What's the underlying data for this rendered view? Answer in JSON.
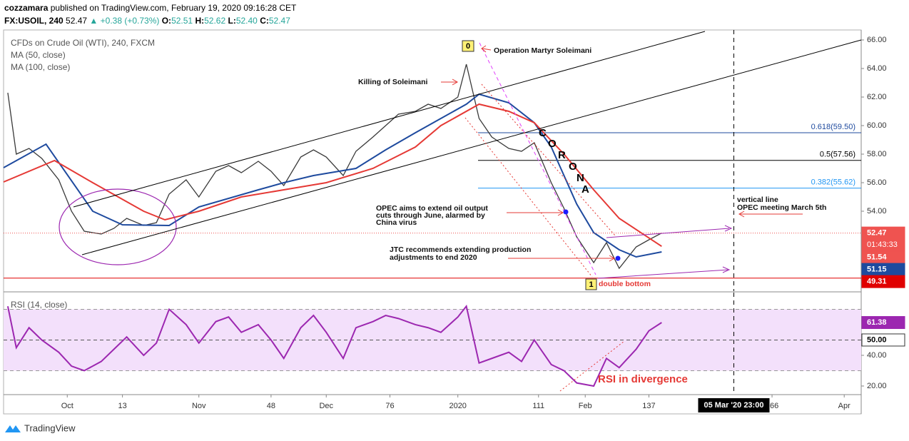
{
  "header": {
    "author": "cozzamara",
    "published": "published on TradingView.com, February 19, 2020 09:16:28 CET",
    "symbol": "FX:USOIL, 240",
    "last": "52.47",
    "arrow": "▲",
    "change": "+0.38 (+0.73%)",
    "o_label": "O:",
    "o": "52.51",
    "h_label": "H:",
    "h": "52.62",
    "l_label": "L:",
    "l": "52.40",
    "c_label": "C:",
    "c": "52.47"
  },
  "annotations": {
    "marker_0": "0",
    "marker_1": "1",
    "operation": "Operation Martyr Soleimani",
    "killing": "Killing of Soleimani",
    "opec": [
      "OPEC aims to extend oil output",
      "cuts through June, alarmed by",
      "China virus"
    ],
    "jtc": [
      "JTC recommends extending production",
      "adjustments to end 2020"
    ],
    "vertical": [
      "vertical line",
      "OPEC meeting March 5th"
    ],
    "double_bottom": "double bottom",
    "divergence": "RSI in divergence",
    "corona": [
      "C",
      "O",
      "R",
      "O",
      "N",
      "A"
    ]
  },
  "footer": "TradingView",
  "chart_data": [
    {
      "type": "line",
      "title": "CFDs on Crude Oil (WTI), 240, FXCM",
      "xlim": [
        -15,
        187
      ],
      "ylim": [
        48.4,
        66.7
      ],
      "yticks": [
        {
          "value": 54,
          "label": "54.00"
        },
        {
          "value": 56,
          "label": "56.00"
        },
        {
          "value": 58,
          "label": "58.00"
        },
        {
          "value": 60,
          "label": "60.00"
        },
        {
          "value": 62,
          "label": "62.00"
        },
        {
          "value": 64,
          "label": "64.00"
        },
        {
          "value": 66,
          "label": "66.00"
        }
      ],
      "series": [
        {
          "color": "#3a3a3a",
          "x": [
            -14,
            -12,
            -9,
            -6,
            -2,
            1,
            4,
            8,
            11,
            14,
            18,
            21,
            24,
            28,
            31,
            35,
            38,
            41,
            45,
            48,
            51,
            55,
            58,
            61,
            65,
            68,
            72,
            75,
            78,
            82,
            85,
            88,
            92,
            94,
            97,
            100,
            104,
            107,
            110,
            114,
            117,
            120,
            124,
            127,
            130,
            134,
            137,
            140
          ],
          "values": [
            62.3,
            58.0,
            58.4,
            57.7,
            56.2,
            54.0,
            52.6,
            52.4,
            52.8,
            53.5,
            53.0,
            53.2,
            55.2,
            56.2,
            55.0,
            56.8,
            57.2,
            56.7,
            57.5,
            56.8,
            55.8,
            57.8,
            58.3,
            57.8,
            56.5,
            58.2,
            59.2,
            60.0,
            60.8,
            61.0,
            61.5,
            61.2,
            62.0,
            64.3,
            60.5,
            59.2,
            58.4,
            58.2,
            58.8,
            56.0,
            54.2,
            52.2,
            50.4,
            51.8,
            50.0,
            51.5,
            52.0,
            52.47
          ]
        },
        {
          "name": "MA (50, close)",
          "color": "#1e4a9e",
          "x": [
            -15,
            -5,
            6,
            13,
            24,
            31,
            45,
            51,
            58,
            68,
            75,
            82,
            88,
            94,
            97,
            104,
            110,
            114,
            117,
            120,
            124,
            130,
            134,
            140
          ],
          "values": [
            57.05,
            58.7,
            54.0,
            53.05,
            53.0,
            54.3,
            55.5,
            56.0,
            56.5,
            57.0,
            58.3,
            59.5,
            60.5,
            61.5,
            62.2,
            61.6,
            60.2,
            58.5,
            56.5,
            54.5,
            52.5,
            51.3,
            50.8,
            51.15
          ]
        },
        {
          "name": "MA (100, close)",
          "color": "#e53935",
          "x": [
            -15,
            -3,
            6,
            18,
            23,
            31,
            41,
            51,
            61,
            72,
            82,
            88,
            97,
            104,
            110,
            117,
            124,
            130,
            140
          ],
          "values": [
            56.05,
            57.55,
            56.0,
            54.0,
            53.4,
            54.0,
            55.0,
            55.5,
            56.0,
            57.0,
            58.5,
            60.0,
            61.5,
            61.0,
            60.2,
            58.0,
            55.5,
            53.5,
            51.54
          ]
        }
      ],
      "levels": [
        {
          "value": 59.5,
          "label": "0.618(59.50)",
          "color": "#1e4a9e"
        },
        {
          "value": 57.56,
          "label": "0.5(57.56)",
          "color": "#000000"
        },
        {
          "value": 55.62,
          "label": "0.382(55.62)",
          "color": "#2196f3"
        },
        {
          "value": 49.31,
          "color": "#e00000"
        }
      ],
      "badges": [
        {
          "value": 52.47,
          "label": "52.47",
          "sub": "01:43:33",
          "color": "#ef5350"
        },
        {
          "value": 51.54,
          "label": "51.54",
          "color": "#ef5350"
        },
        {
          "value": 51.15,
          "label": "51.15",
          "color": "#1e4a9e"
        },
        {
          "value": 49.31,
          "label": "49.31",
          "color": "#e00000"
        }
      ],
      "crosshair": {
        "x": 157
      }
    },
    {
      "type": "line",
      "title": "RSI (14, close)",
      "xlim": [
        -15,
        187
      ],
      "ylim": [
        14.4,
        80.9
      ],
      "yticks": [
        {
          "value": 20,
          "label": "20.00"
        },
        {
          "value": 40,
          "label": "40.00"
        }
      ],
      "xticks": [
        {
          "value": 0,
          "label": "Oct"
        },
        13,
        {
          "value": 31,
          "label": "Nov"
        },
        48,
        {
          "value": 61,
          "label": "Dec"
        },
        76,
        {
          "value": 92,
          "label": "2020"
        },
        111,
        {
          "value": 122,
          "label": "Feb"
        },
        137,
        166,
        {
          "value": 183,
          "label": "Apr"
        }
      ],
      "band": [
        30,
        70
      ],
      "midline": 50,
      "band_color": "#f3e0fb",
      "series": [
        {
          "color": "#9c27b0",
          "x": [
            -14,
            -12,
            -9,
            -6,
            -2,
            1,
            4,
            8,
            11,
            14,
            18,
            21,
            24,
            28,
            31,
            35,
            38,
            41,
            45,
            48,
            51,
            55,
            58,
            61,
            65,
            68,
            72,
            75,
            78,
            82,
            85,
            88,
            92,
            94,
            97,
            100,
            104,
            107,
            110,
            114,
            117,
            120,
            124,
            127,
            130,
            134,
            137,
            140
          ],
          "values": [
            72,
            45,
            58,
            50,
            42,
            33,
            30,
            36,
            44,
            52,
            40,
            48,
            70,
            60,
            48,
            62,
            65,
            55,
            60,
            50,
            38,
            58,
            66,
            55,
            38,
            58,
            62,
            66,
            64,
            60,
            58,
            55,
            65,
            72,
            35,
            38,
            42,
            36,
            50,
            34,
            30,
            22,
            20,
            38,
            32,
            44,
            56,
            61.38
          ]
        }
      ],
      "badges": [
        {
          "value": 61.38,
          "label": "61.38",
          "color": "#9c27b0"
        },
        {
          "value": 50,
          "label": "50.00",
          "color": "#ffffff"
        }
      ],
      "crosshair": {
        "x": 157,
        "label": "05 Mar '20  23:00"
      }
    }
  ]
}
